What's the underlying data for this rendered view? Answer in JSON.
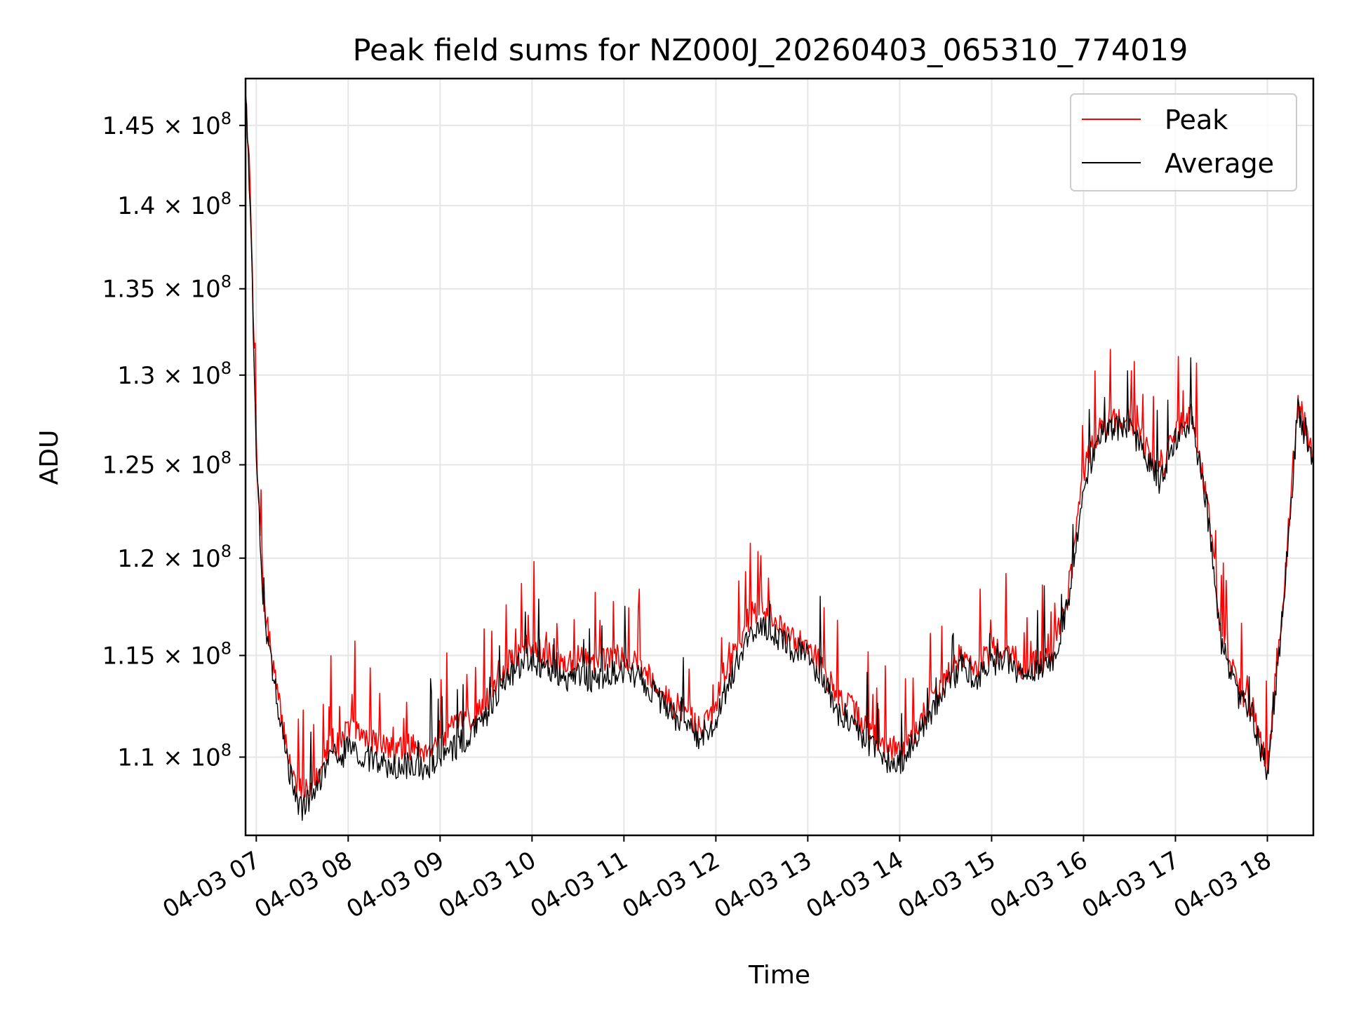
{
  "chart_data": {
    "type": "line",
    "title": "Peak field sums for NZ000J_20260403_065310_774019",
    "xlabel": "Time",
    "ylabel": "ADU",
    "y_scale": "log",
    "xlim": [
      "04-03 06:53",
      "04-03 18:30"
    ],
    "ylim": [
      106300000,
      148000000
    ],
    "grid": true,
    "legend_position": "top-right",
    "x_ticks": [
      "04-03 07",
      "04-03 08",
      "04-03 09",
      "04-03 10",
      "04-03 11",
      "04-03 12",
      "04-03 13",
      "04-03 14",
      "04-03 15",
      "04-03 16",
      "04-03 17",
      "04-03 18"
    ],
    "y_ticks": [
      {
        "value": 110000000,
        "mantissa": "1.1"
      },
      {
        "value": 115000000,
        "mantissa": "1.15"
      },
      {
        "value": 120000000,
        "mantissa": "1.2"
      },
      {
        "value": 125000000,
        "mantissa": "1.25"
      },
      {
        "value": 130000000,
        "mantissa": "1.3"
      },
      {
        "value": 135000000,
        "mantissa": "1.35"
      },
      {
        "value": 140000000,
        "mantissa": "1.4"
      },
      {
        "value": 145000000,
        "mantissa": "1.45"
      }
    ],
    "y_tick_exponent": "8",
    "series": [
      {
        "name": "Peak",
        "color": "#ff0000",
        "x": [
          "04-03 06:53",
          "04-03 06:56",
          "04-03 07:00",
          "04-03 07:05",
          "04-03 07:10",
          "04-03 07:15",
          "04-03 07:20",
          "04-03 07:25",
          "04-03 07:30",
          "04-03 07:35",
          "04-03 07:40",
          "04-03 07:45",
          "04-03 07:50",
          "04-03 07:55",
          "04-03 08:00",
          "04-03 08:10",
          "04-03 08:20",
          "04-03 08:30",
          "04-03 08:40",
          "04-03 08:50",
          "04-03 09:00",
          "04-03 09:10",
          "04-03 09:20",
          "04-03 09:30",
          "04-03 09:40",
          "04-03 09:50",
          "04-03 10:00",
          "04-03 10:10",
          "04-03 10:20",
          "04-03 10:30",
          "04-03 10:40",
          "04-03 10:50",
          "04-03 11:00",
          "04-03 11:10",
          "04-03 11:20",
          "04-03 11:30",
          "04-03 11:40",
          "04-03 11:50",
          "04-03 12:00",
          "04-03 12:10",
          "04-03 12:20",
          "04-03 12:30",
          "04-03 12:40",
          "04-03 12:50",
          "04-03 13:00",
          "04-03 13:10",
          "04-03 13:20",
          "04-03 13:30",
          "04-03 13:40",
          "04-03 13:50",
          "04-03 14:00",
          "04-03 14:10",
          "04-03 14:20",
          "04-03 14:30",
          "04-03 14:40",
          "04-03 14:50",
          "04-03 15:00",
          "04-03 15:10",
          "04-03 15:20",
          "04-03 15:30",
          "04-03 15:40",
          "04-03 15:50",
          "04-03 16:00",
          "04-03 16:10",
          "04-03 16:20",
          "04-03 16:30",
          "04-03 16:40",
          "04-03 16:50",
          "04-03 17:00",
          "04-03 17:10",
          "04-03 17:20",
          "04-03 17:30",
          "04-03 17:40",
          "04-03 17:50",
          "04-03 18:00",
          "04-03 18:10",
          "04-03 18:20",
          "04-03 18:30"
        ],
        "values": [
          147500000,
          141000000,
          126000000,
          117500000,
          115000000,
          112500000,
          110500000,
          108800000,
          108300000,
          108700000,
          109200000,
          110000000,
          110800000,
          110500000,
          111500000,
          111000000,
          110700000,
          110300000,
          110500000,
          110400000,
          110800000,
          111500000,
          111800000,
          112800000,
          114200000,
          115000000,
          115600000,
          115000000,
          114600000,
          114900000,
          114600000,
          114800000,
          115000000,
          114600000,
          113700000,
          112600000,
          112300000,
          111300000,
          112600000,
          114700000,
          116700000,
          117600000,
          116500000,
          115800000,
          115700000,
          114300000,
          112800000,
          112300000,
          111200000,
          110500000,
          110300000,
          111200000,
          112700000,
          113800000,
          115000000,
          114500000,
          115200000,
          115400000,
          114300000,
          114700000,
          115200000,
          118000000,
          124500000,
          127000000,
          127500000,
          127500000,
          126000000,
          124500000,
          126800000,
          128000000,
          123500000,
          116000000,
          113500000,
          112500000,
          109500000,
          117500000,
          128500000,
          125500000
        ]
      },
      {
        "name": "Average",
        "color": "#000000",
        "x": [
          "04-03 06:53",
          "04-03 06:56",
          "04-03 07:00",
          "04-03 07:05",
          "04-03 07:10",
          "04-03 07:15",
          "04-03 07:20",
          "04-03 07:25",
          "04-03 07:30",
          "04-03 07:35",
          "04-03 07:40",
          "04-03 07:45",
          "04-03 07:50",
          "04-03 07:55",
          "04-03 08:00",
          "04-03 08:10",
          "04-03 08:20",
          "04-03 08:30",
          "04-03 08:40",
          "04-03 08:50",
          "04-03 09:00",
          "04-03 09:10",
          "04-03 09:20",
          "04-03 09:30",
          "04-03 09:40",
          "04-03 09:50",
          "04-03 10:00",
          "04-03 10:10",
          "04-03 10:20",
          "04-03 10:30",
          "04-03 10:40",
          "04-03 10:50",
          "04-03 11:00",
          "04-03 11:10",
          "04-03 11:20",
          "04-03 11:30",
          "04-03 11:40",
          "04-03 11:50",
          "04-03 12:00",
          "04-03 12:10",
          "04-03 12:20",
          "04-03 12:30",
          "04-03 12:40",
          "04-03 12:50",
          "04-03 13:00",
          "04-03 13:10",
          "04-03 13:20",
          "04-03 13:30",
          "04-03 13:40",
          "04-03 13:50",
          "04-03 14:00",
          "04-03 14:10",
          "04-03 14:20",
          "04-03 14:30",
          "04-03 14:40",
          "04-03 14:50",
          "04-03 15:00",
          "04-03 15:10",
          "04-03 15:20",
          "04-03 15:30",
          "04-03 15:40",
          "04-03 15:50",
          "04-03 16:00",
          "04-03 16:10",
          "04-03 16:20",
          "04-03 16:30",
          "04-03 16:40",
          "04-03 16:50",
          "04-03 17:00",
          "04-03 17:10",
          "04-03 17:20",
          "04-03 17:30",
          "04-03 17:40",
          "04-03 17:50",
          "04-03 18:00",
          "04-03 18:10",
          "04-03 18:20",
          "04-03 18:30"
        ],
        "values": [
          147000000,
          140500000,
          125500000,
          117000000,
          114500000,
          112000000,
          110000000,
          108200000,
          107600000,
          108000000,
          108700000,
          109400000,
          110300000,
          109900000,
          110600000,
          110000000,
          109700000,
          109500000,
          109600000,
          109400000,
          109900000,
          110500000,
          111000000,
          112100000,
          113400000,
          114400000,
          114900000,
          114200000,
          113800000,
          114000000,
          113700000,
          114000000,
          114300000,
          114000000,
          113100000,
          112100000,
          111700000,
          110900000,
          111900000,
          113900000,
          115800000,
          116600000,
          115800000,
          115300000,
          115100000,
          113700000,
          112200000,
          111700000,
          110600000,
          109900000,
          109700000,
          110700000,
          112100000,
          113200000,
          114500000,
          113900000,
          114600000,
          114900000,
          113800000,
          114200000,
          114700000,
          117600000,
          124000000,
          126500000,
          127100000,
          127100000,
          125600000,
          124000000,
          126300000,
          127600000,
          123000000,
          115600000,
          113100000,
          112100000,
          109100000,
          117100000,
          128000000,
          125000000
        ]
      }
    ]
  }
}
